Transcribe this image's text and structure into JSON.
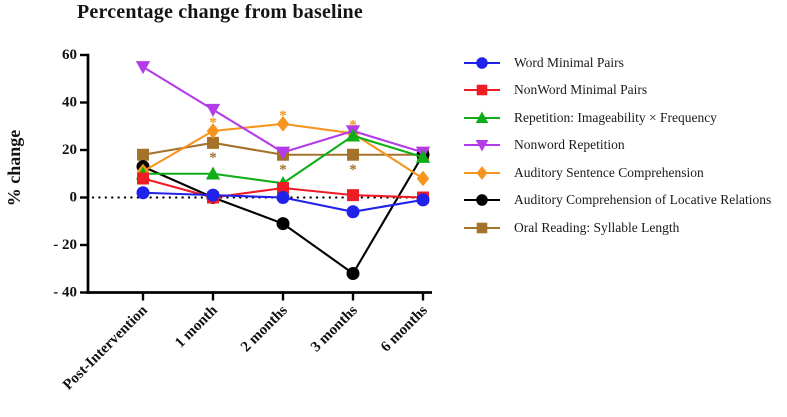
{
  "title": "Percentage change from baseline",
  "chart_data": {
    "type": "line",
    "title": "Percentage change from baseline",
    "xlabel": "",
    "ylabel": "% change",
    "categories": [
      "Post-Intervention",
      "1 month",
      "2 months",
      "3 months",
      "6 months"
    ],
    "ylim": [
      -40,
      60
    ],
    "yticks": [
      60,
      40,
      20,
      0,
      -20,
      -40
    ],
    "ytick_labels": [
      "60",
      "40",
      "20",
      "0",
      "- 20",
      "- 40"
    ],
    "zero_line": "dotted",
    "grid": false,
    "legend_position": "right",
    "series": [
      {
        "name": "Word Minimal Pairs",
        "marker": "circle",
        "color": "#2121EC",
        "values": [
          2,
          1,
          0,
          -6,
          -1
        ]
      },
      {
        "name": "NonWord Minimal Pairs",
        "marker": "square",
        "color": "#EE1C24",
        "values": [
          8,
          0,
          4,
          1,
          0
        ]
      },
      {
        "name": "Repetition: Imageability × Frequency",
        "marker": "triangle-up",
        "color": "#0FAD18",
        "values": [
          10,
          10,
          6,
          26,
          17
        ]
      },
      {
        "name": "Nonword Repetition",
        "marker": "triangle-down",
        "color": "#B43BE8",
        "values": [
          55,
          37,
          19,
          28,
          19
        ]
      },
      {
        "name": "Auditory Sentence Comprehension",
        "marker": "diamond",
        "color": "#F7941E",
        "values": [
          11,
          28,
          31,
          27,
          8
        ],
        "sig": {
          "symbol": "*",
          "placement": "above",
          "at_indices": [
            1,
            2,
            3
          ]
        }
      },
      {
        "name": "Auditory Comprehension of Locative Relations",
        "marker": "circle",
        "color": "#000000",
        "values": [
          13,
          0,
          -11,
          -32,
          18
        ]
      },
      {
        "name": "Oral Reading: Syllable Length",
        "marker": "square",
        "color": "#A5722B",
        "values": [
          18,
          23,
          18,
          18,
          18
        ],
        "sig": {
          "symbol": "*",
          "placement": "below",
          "at_indices": [
            1,
            2,
            3
          ]
        }
      }
    ]
  }
}
